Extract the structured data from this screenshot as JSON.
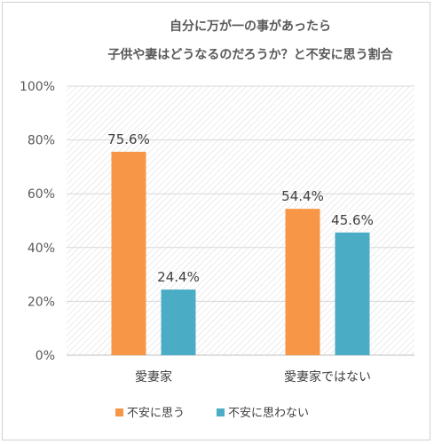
{
  "chart_data": {
    "type": "bar",
    "title_lines": [
      "自分に万が一の事があったら",
      "子供や妻はどうなるのだろうか？と不安に思う割合"
    ],
    "categories": [
      "愛妻家",
      "愛妻家ではない"
    ],
    "series": [
      {
        "name": "不安に思う",
        "values": [
          75.6,
          54.4
        ],
        "labels": [
          "75.6%",
          "54.4%"
        ],
        "color": "#F79646"
      },
      {
        "name": "不安に思わない",
        "values": [
          24.4,
          45.6
        ],
        "labels": [
          "24.4%",
          "45.6%"
        ],
        "color": "#4BACC6"
      }
    ],
    "ylim": [
      0,
      100
    ],
    "yticks": [
      0,
      20,
      40,
      60,
      80,
      100
    ],
    "ytick_labels": [
      "0%",
      "20%",
      "40%",
      "60%",
      "80%",
      "100%"
    ],
    "grid": true,
    "legend_position": "bottom"
  }
}
